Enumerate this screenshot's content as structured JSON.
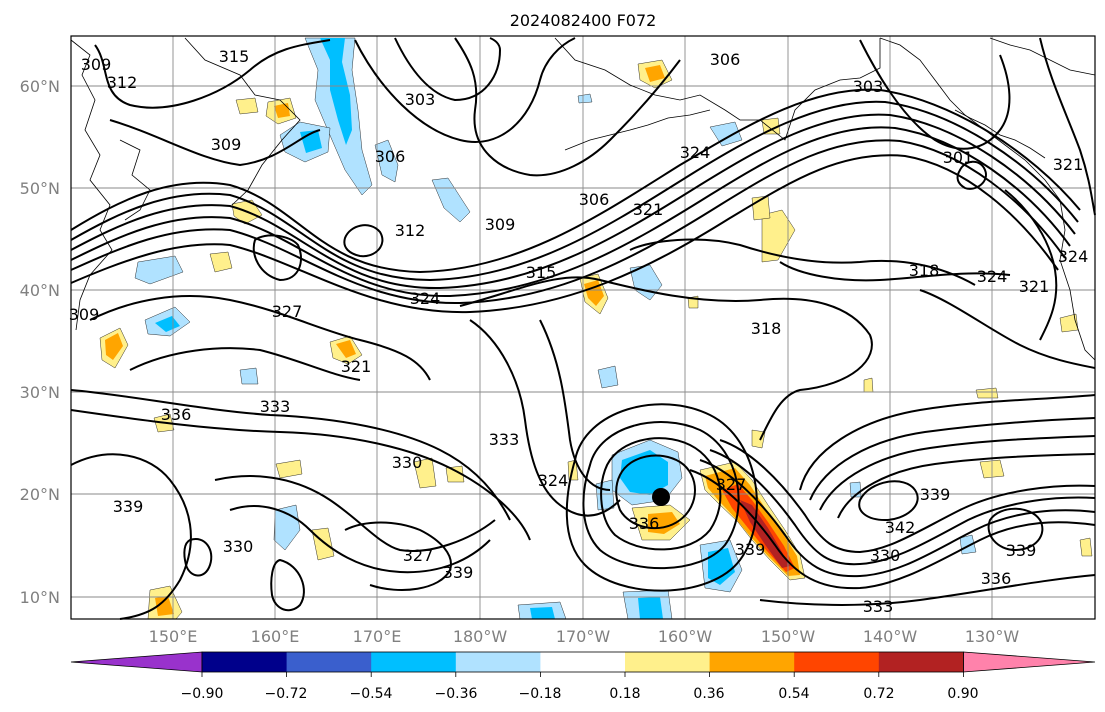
{
  "title": "2024082400 F072",
  "lat_ticks": [
    "60°N",
    "50°N",
    "40°N",
    "30°N",
    "20°N",
    "10°N"
  ],
  "lon_ticks": [
    "150°E",
    "160°E",
    "170°E",
    "180°W",
    "170°W",
    "160°W",
    "150°W",
    "140°W",
    "130°W"
  ],
  "colorbar": {
    "ticks": [
      "−0.90",
      "−0.72",
      "−0.54",
      "−0.36",
      "−0.18",
      "0.18",
      "0.36",
      "0.54",
      "0.72",
      "0.90"
    ],
    "colors": [
      "#9932cc",
      "#00008b",
      "#3a5fcd",
      "#00bfff",
      "#b0e2ff",
      "#ffffff",
      "#fff08c",
      "#ffa500",
      "#ff4500",
      "#b22222",
      "#ff82ab"
    ]
  },
  "contour_labels": [
    "315",
    "309",
    "312",
    "303",
    "306",
    "306",
    "303",
    "309",
    "312",
    "309",
    "315",
    "324",
    "321",
    "318",
    "324",
    "321",
    "318",
    "327",
    "324",
    "321",
    "333",
    "336",
    "333",
    "330",
    "339",
    "330",
    "327",
    "339",
    "324",
    "336",
    "327",
    "339",
    "342",
    "339",
    "330",
    "333",
    "336",
    "339",
    "301",
    "309",
    "321",
    "324",
    "306"
  ],
  "colors": {
    "contour": "#000000",
    "grid": "#8a8a8a",
    "tick_text": "#808080"
  }
}
